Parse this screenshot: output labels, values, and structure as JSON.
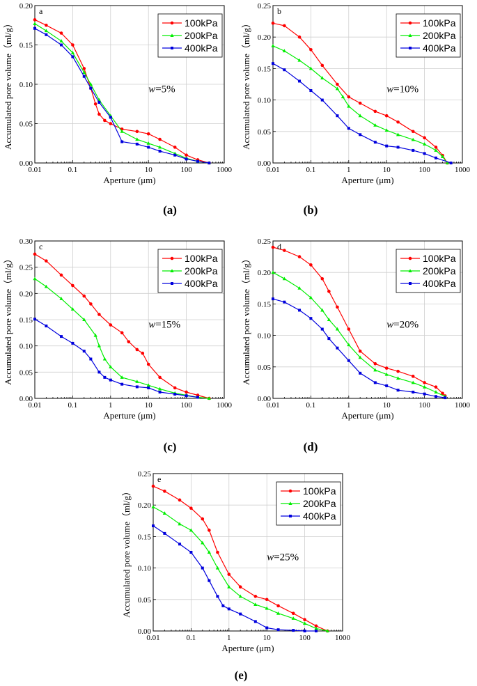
{
  "chart_data": [
    {
      "id": "a",
      "type": "line",
      "panel_letter": "a",
      "caption": "(a)",
      "annotation_var": "w",
      "annotation_value": "=5%",
      "xlabel": "Aperture (μm)",
      "ylabel": "Accumulated pore volume（ml/g）",
      "xscale": "log",
      "xlim": [
        0.01,
        1000
      ],
      "ylim": [
        0,
        0.2
      ],
      "x_tick_labels": [
        "0.01",
        "0.1",
        "1",
        "10",
        "100",
        "1000"
      ],
      "y_ticks": [
        0,
        0.05,
        0.1,
        0.15,
        0.2
      ],
      "y_tick_labels": [
        "0.00",
        "0.05",
        "0.10",
        "0.15",
        "0.20"
      ],
      "legend": "top-right",
      "series": [
        {
          "name": "100kPa",
          "color": "#ff0000",
          "marker": "circle",
          "x": [
            0.01,
            0.02,
            0.05,
            0.1,
            0.2,
            0.3,
            0.4,
            0.5,
            0.7,
            1,
            2,
            5,
            10,
            20,
            50,
            100,
            200,
            400
          ],
          "y": [
            0.182,
            0.175,
            0.165,
            0.15,
            0.12,
            0.095,
            0.075,
            0.062,
            0.054,
            0.05,
            0.043,
            0.04,
            0.037,
            0.03,
            0.02,
            0.01,
            0.004,
            0.0
          ]
        },
        {
          "name": "200kPa",
          "color": "#00ee00",
          "marker": "triangle",
          "x": [
            0.01,
            0.02,
            0.05,
            0.1,
            0.2,
            0.3,
            0.5,
            1,
            2,
            5,
            10,
            20,
            50,
            100,
            200,
            400
          ],
          "y": [
            0.177,
            0.168,
            0.155,
            0.14,
            0.115,
            0.1,
            0.08,
            0.06,
            0.04,
            0.03,
            0.025,
            0.02,
            0.012,
            0.006,
            0.002,
            0.0
          ]
        },
        {
          "name": "400kPa",
          "color": "#0000dd",
          "marker": "square",
          "x": [
            0.01,
            0.02,
            0.05,
            0.1,
            0.2,
            0.3,
            0.5,
            1,
            2,
            5,
            10,
            20,
            50,
            100,
            200,
            400
          ],
          "y": [
            0.171,
            0.163,
            0.15,
            0.135,
            0.11,
            0.095,
            0.077,
            0.058,
            0.027,
            0.024,
            0.02,
            0.015,
            0.01,
            0.005,
            0.002,
            0.0
          ]
        }
      ]
    },
    {
      "id": "b",
      "type": "line",
      "panel_letter": "b",
      "caption": "(b)",
      "annotation_var": "w",
      "annotation_value": "=10%",
      "xlabel": "Aperture (μm)",
      "ylabel": "Accumulated pore volume（ml/g）",
      "xscale": "log",
      "xlim": [
        0.01,
        1000
      ],
      "ylim": [
        0,
        0.25
      ],
      "x_tick_labels": [
        "0.01",
        "0.1",
        "1",
        "10",
        "100",
        "1000"
      ],
      "y_ticks": [
        0,
        0.05,
        0.1,
        0.15,
        0.2,
        0.25
      ],
      "y_tick_labels": [
        "0.00",
        "0.05",
        "0.10",
        "0.15",
        "0.20",
        "0.25"
      ],
      "legend": "top-right",
      "series": [
        {
          "name": "100kPa",
          "color": "#ff0000",
          "marker": "circle",
          "x": [
            0.01,
            0.02,
            0.05,
            0.1,
            0.2,
            0.5,
            1,
            2,
            5,
            10,
            20,
            50,
            100,
            200,
            300,
            400
          ],
          "y": [
            0.222,
            0.218,
            0.2,
            0.18,
            0.155,
            0.125,
            0.105,
            0.095,
            0.082,
            0.075,
            0.065,
            0.05,
            0.04,
            0.025,
            0.012,
            0.0
          ]
        },
        {
          "name": "200kPa",
          "color": "#00ee00",
          "marker": "triangle",
          "x": [
            0.01,
            0.02,
            0.05,
            0.1,
            0.2,
            0.5,
            0.7,
            1,
            2,
            5,
            10,
            20,
            50,
            100,
            200,
            300,
            400
          ],
          "y": [
            0.186,
            0.178,
            0.163,
            0.15,
            0.135,
            0.118,
            0.105,
            0.09,
            0.075,
            0.06,
            0.052,
            0.045,
            0.037,
            0.03,
            0.02,
            0.01,
            0.0
          ]
        },
        {
          "name": "400kPa",
          "color": "#0000dd",
          "marker": "square",
          "x": [
            0.01,
            0.02,
            0.05,
            0.1,
            0.2,
            0.5,
            1,
            2,
            5,
            10,
            20,
            50,
            100,
            200,
            500
          ],
          "y": [
            0.158,
            0.148,
            0.13,
            0.115,
            0.1,
            0.075,
            0.055,
            0.045,
            0.033,
            0.027,
            0.025,
            0.02,
            0.015,
            0.008,
            0.0
          ]
        }
      ]
    },
    {
      "id": "c",
      "type": "line",
      "panel_letter": "c",
      "caption": "(c)",
      "annotation_var": "w",
      "annotation_value": "=15%",
      "xlabel": "Aperture (μm)",
      "ylabel": "Accumulated pore volume（ml/g）",
      "xscale": "log",
      "xlim": [
        0.01,
        1000
      ],
      "ylim": [
        0,
        0.3
      ],
      "x_tick_labels": [
        "0.01",
        "0.1",
        "1",
        "10",
        "100",
        "1000"
      ],
      "y_ticks": [
        0,
        0.05,
        0.1,
        0.15,
        0.2,
        0.25,
        0.3
      ],
      "y_tick_labels": [
        "0.00",
        "0.05",
        "0.10",
        "0.15",
        "0.20",
        "0.25",
        "0.30"
      ],
      "legend": "top-right",
      "series": [
        {
          "name": "100kPa",
          "color": "#ff0000",
          "marker": "circle",
          "x": [
            0.01,
            0.02,
            0.05,
            0.1,
            0.2,
            0.3,
            0.5,
            1,
            2,
            3,
            5,
            7,
            10,
            20,
            50,
            100,
            200,
            400
          ],
          "y": [
            0.275,
            0.262,
            0.235,
            0.215,
            0.195,
            0.18,
            0.16,
            0.14,
            0.125,
            0.108,
            0.093,
            0.086,
            0.065,
            0.04,
            0.02,
            0.012,
            0.006,
            0.0
          ]
        },
        {
          "name": "200kPa",
          "color": "#00ee00",
          "marker": "triangle",
          "x": [
            0.01,
            0.02,
            0.05,
            0.1,
            0.2,
            0.4,
            0.5,
            0.7,
            1,
            2,
            5,
            10,
            20,
            50,
            100,
            200,
            400
          ],
          "y": [
            0.228,
            0.213,
            0.19,
            0.17,
            0.15,
            0.12,
            0.1,
            0.075,
            0.06,
            0.04,
            0.032,
            0.025,
            0.018,
            0.01,
            0.006,
            0.002,
            0.0
          ]
        },
        {
          "name": "400kPa",
          "color": "#0000dd",
          "marker": "square",
          "x": [
            0.01,
            0.02,
            0.05,
            0.1,
            0.2,
            0.3,
            0.5,
            0.7,
            1,
            2,
            5,
            10,
            20,
            50,
            100,
            200
          ],
          "y": [
            0.151,
            0.138,
            0.118,
            0.105,
            0.09,
            0.075,
            0.05,
            0.04,
            0.035,
            0.027,
            0.022,
            0.02,
            0.012,
            0.008,
            0.005,
            0.002
          ]
        }
      ]
    },
    {
      "id": "d",
      "type": "line",
      "panel_letter": "d",
      "caption": "(d)",
      "annotation_var": "w",
      "annotation_value": "=20%",
      "xlabel": "Aperture (μm)",
      "ylabel": "Accumulated pore volume（ml/g）",
      "xscale": "log",
      "xlim": [
        0.01,
        1000
      ],
      "ylim": [
        0,
        0.25
      ],
      "x_tick_labels": [
        "0.01",
        "0.1",
        "1",
        "10",
        "100",
        "1000"
      ],
      "y_ticks": [
        0,
        0.05,
        0.1,
        0.15,
        0.2,
        0.25
      ],
      "y_tick_labels": [
        "0.00",
        "0.05",
        "0.10",
        "0.15",
        "0.20",
        "0.25"
      ],
      "legend": "top-right",
      "series": [
        {
          "name": "100kPa",
          "color": "#ff0000",
          "marker": "circle",
          "x": [
            0.01,
            0.02,
            0.05,
            0.1,
            0.2,
            0.3,
            0.5,
            1,
            2,
            5,
            10,
            20,
            50,
            100,
            200,
            300,
            350
          ],
          "y": [
            0.24,
            0.235,
            0.225,
            0.212,
            0.19,
            0.17,
            0.145,
            0.11,
            0.075,
            0.055,
            0.048,
            0.043,
            0.035,
            0.025,
            0.018,
            0.008,
            0.004
          ]
        },
        {
          "name": "200kPa",
          "color": "#00ee00",
          "marker": "triangle",
          "x": [
            0.01,
            0.02,
            0.05,
            0.1,
            0.2,
            0.3,
            0.5,
            1,
            2,
            5,
            10,
            20,
            50,
            100,
            200,
            350
          ],
          "y": [
            0.2,
            0.19,
            0.175,
            0.16,
            0.14,
            0.125,
            0.11,
            0.085,
            0.065,
            0.045,
            0.038,
            0.032,
            0.025,
            0.018,
            0.01,
            0.003
          ]
        },
        {
          "name": "400kPa",
          "color": "#0000dd",
          "marker": "square",
          "x": [
            0.01,
            0.02,
            0.05,
            0.1,
            0.2,
            0.3,
            0.5,
            1,
            2,
            5,
            10,
            20,
            50,
            100,
            200,
            350
          ],
          "y": [
            0.158,
            0.153,
            0.14,
            0.127,
            0.11,
            0.095,
            0.08,
            0.06,
            0.04,
            0.025,
            0.02,
            0.013,
            0.01,
            0.007,
            0.003,
            0.001
          ]
        }
      ]
    },
    {
      "id": "e",
      "type": "line",
      "panel_letter": "e",
      "caption": "(e)",
      "annotation_var": "w",
      "annotation_value": "=25%",
      "xlabel": "Aperture (μm)",
      "ylabel": "Accumulated pore volume（ml/g）",
      "xscale": "log",
      "xlim": [
        0.01,
        1000
      ],
      "ylim": [
        0,
        0.25
      ],
      "x_tick_labels": [
        "0.01",
        "0.1",
        "1",
        "10",
        "100",
        "1000"
      ],
      "y_ticks": [
        0,
        0.05,
        0.1,
        0.15,
        0.2,
        0.25
      ],
      "y_tick_labels": [
        "0.00",
        "0.05",
        "0.10",
        "0.15",
        "0.20",
        "0.25"
      ],
      "legend": "top-right",
      "series": [
        {
          "name": "100kPa",
          "color": "#ff0000",
          "marker": "circle",
          "x": [
            0.01,
            0.02,
            0.05,
            0.1,
            0.2,
            0.3,
            0.5,
            1,
            2,
            5,
            10,
            20,
            50,
            100,
            200,
            400
          ],
          "y": [
            0.23,
            0.222,
            0.208,
            0.195,
            0.178,
            0.16,
            0.125,
            0.09,
            0.07,
            0.055,
            0.05,
            0.04,
            0.028,
            0.018,
            0.008,
            0.0
          ]
        },
        {
          "name": "200kPa",
          "color": "#00ee00",
          "marker": "triangle",
          "x": [
            0.01,
            0.02,
            0.05,
            0.1,
            0.2,
            0.3,
            0.5,
            1,
            2,
            5,
            10,
            20,
            50,
            100,
            200,
            400
          ],
          "y": [
            0.197,
            0.187,
            0.17,
            0.16,
            0.14,
            0.125,
            0.1,
            0.07,
            0.055,
            0.042,
            0.036,
            0.028,
            0.02,
            0.012,
            0.004,
            0.0
          ]
        },
        {
          "name": "400kPa",
          "color": "#0000dd",
          "marker": "square",
          "x": [
            0.01,
            0.02,
            0.05,
            0.1,
            0.2,
            0.3,
            0.5,
            0.7,
            1,
            2,
            5,
            10,
            20,
            50,
            100,
            200
          ],
          "y": [
            0.167,
            0.155,
            0.138,
            0.125,
            0.1,
            0.08,
            0.055,
            0.04,
            0.035,
            0.027,
            0.015,
            0.005,
            0.002,
            0.001,
            0.0,
            0.0
          ]
        }
      ]
    }
  ]
}
